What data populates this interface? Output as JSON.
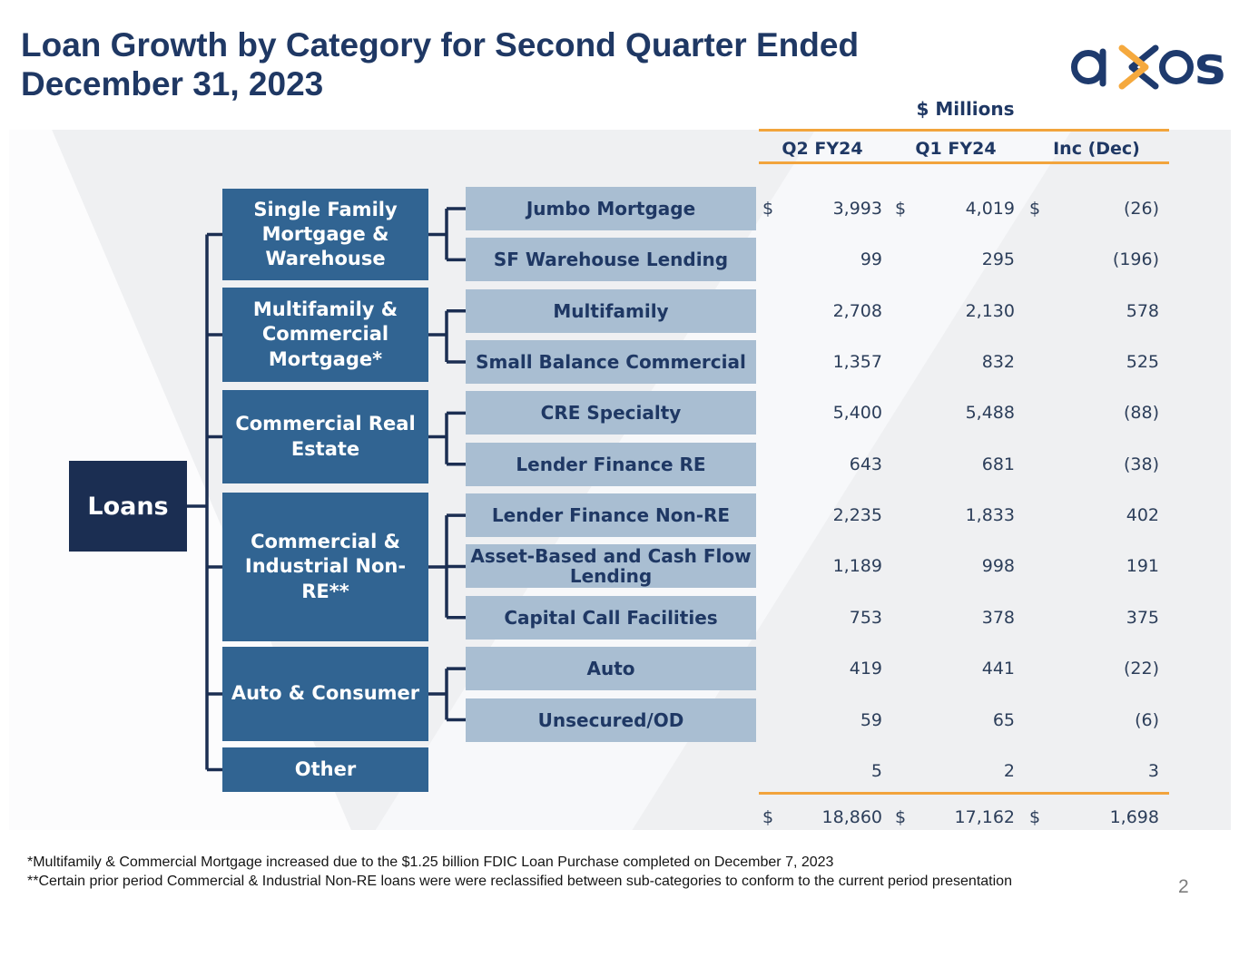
{
  "slide": {
    "title": "Loan Growth by Category for Second Quarter Ended December 31, 2023",
    "units_label": "$ Millions",
    "page_number": "2"
  },
  "logo": {
    "text": "axos"
  },
  "columns": [
    "Q2 FY24",
    "Q1 FY24",
    "Inc (Dec)"
  ],
  "tree": {
    "root": "Loans",
    "categories": [
      {
        "label": "Single Family Mortgage & Warehouse",
        "children": [
          0,
          1
        ]
      },
      {
        "label": "Multifamily & Commercial Mortgage*",
        "children": [
          2,
          3
        ]
      },
      {
        "label": "Commercial Real Estate",
        "children": [
          4,
          5
        ]
      },
      {
        "label": "Commercial & Industrial Non-RE**",
        "children": [
          6,
          7,
          8
        ]
      },
      {
        "label": "Auto & Consumer",
        "children": [
          9,
          10
        ]
      },
      {
        "label": "Other",
        "children": []
      }
    ]
  },
  "rows": [
    {
      "label": "Jumbo Mortgage",
      "q2": "3,993",
      "q1": "4,019",
      "inc": "(26)",
      "dollar": true
    },
    {
      "label": "SF Warehouse Lending",
      "q2": "99",
      "q1": "295",
      "inc": "(196)",
      "dollar": false
    },
    {
      "label": "Multifamily",
      "q2": "2,708",
      "q1": "2,130",
      "inc": "578",
      "dollar": false
    },
    {
      "label": "Small Balance Commercial",
      "q2": "1,357",
      "q1": "832",
      "inc": "525",
      "dollar": false
    },
    {
      "label": "CRE Specialty",
      "q2": "5,400",
      "q1": "5,488",
      "inc": "(88)",
      "dollar": false
    },
    {
      "label": "Lender Finance RE",
      "q2": "643",
      "q1": "681",
      "inc": "(38)",
      "dollar": false
    },
    {
      "label": "Lender Finance Non-RE",
      "q2": "2,235",
      "q1": "1,833",
      "inc": "402",
      "dollar": false
    },
    {
      "label": "Asset-Based and Cash Flow Lending",
      "q2": "1,189",
      "q1": "998",
      "inc": "191",
      "dollar": false
    },
    {
      "label": "Capital Call Facilities",
      "q2": "753",
      "q1": "378",
      "inc": "375",
      "dollar": false
    },
    {
      "label": "Auto",
      "q2": "419",
      "q1": "441",
      "inc": "(22)",
      "dollar": false
    },
    {
      "label": "Unsecured/OD",
      "q2": "59",
      "q1": "65",
      "inc": "(6)",
      "dollar": false
    },
    {
      "label": "Other",
      "q2": "5",
      "q1": "2",
      "inc": "3",
      "dollar": false
    }
  ],
  "total": {
    "q2": "18,860",
    "q1": "17,162",
    "inc": "1,698",
    "dollar": true
  },
  "footnotes": [
    "*Multifamily & Commercial Mortgage increased due to the $1.25 billion FDIC Loan Purchase completed on December 7, 2023",
    "**Certain prior period Commercial & Industrial Non-RE loans were were reclassified between sub-categories to conform to the current period presentation"
  ],
  "colors": {
    "title_navy": "#1f3864",
    "root_box": "#1b2e52",
    "category_box": "#316492",
    "subcategory_box": "#a9bed2",
    "table_text": "#2c3e5a",
    "orange_rule": "#f2a43c",
    "logo_orange": "#f5a93e",
    "connector": "#1b2e52",
    "panel_gray": "#eff0f2"
  }
}
